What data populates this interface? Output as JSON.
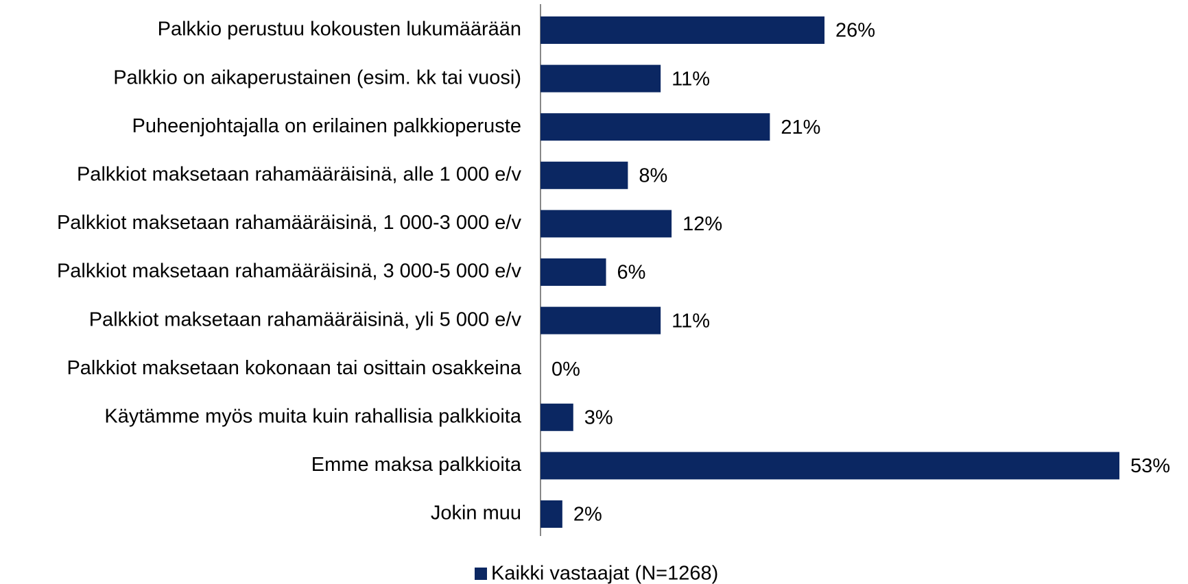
{
  "chart_data": {
    "type": "bar",
    "orientation": "horizontal",
    "categories": [
      "Palkkio perustuu kokousten lukumäärään",
      "Palkkio on aikaperustainen (esim. kk tai vuosi)",
      "Puheenjohtajalla on erilainen palkkioperuste",
      "Palkkiot maksetaan rahamääräisinä, alle 1 000 e/v",
      "Palkkiot maksetaan rahamääräisinä, 1 000-3 000 e/v",
      "Palkkiot maksetaan rahamääräisinä, 3 000-5 000 e/v",
      "Palkkiot maksetaan rahamääräisinä, yli 5 000 e/v",
      "Palkkiot maksetaan kokonaan tai osittain osakkeina",
      "Käytämme myös muita kuin rahallisia palkkioita",
      "Emme maksa palkkioita",
      "Jokin muu"
    ],
    "series": [
      {
        "name": "Kaikki vastaajat (N=1268)",
        "color": "#0b2762",
        "values": [
          26,
          11,
          21,
          8,
          12,
          6,
          11,
          0,
          3,
          53,
          2
        ],
        "value_labels": [
          "26%",
          "11%",
          "21%",
          "8%",
          "12%",
          "6%",
          "11%",
          "0%",
          "3%",
          "53%",
          "2%"
        ]
      }
    ],
    "legend": "bottom"
  }
}
